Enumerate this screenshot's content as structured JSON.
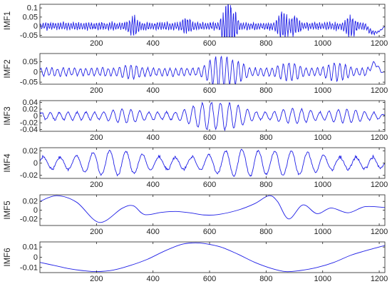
{
  "figure": {
    "line_color": "#1f1fe6",
    "axis_color": "#222222"
  },
  "chart_data": [
    {
      "type": "line",
      "ylabel": "IMF1",
      "xlim": [
        0,
        1220
      ],
      "ylim": [
        -0.06,
        0.12
      ],
      "xticks": [
        200,
        400,
        600,
        800,
        1000,
        1200
      ],
      "xtick_labels": [
        "200",
        "400",
        "600",
        "800",
        "1000",
        "1200"
      ],
      "yticks": [
        -0.05,
        0,
        0.05,
        0.1
      ],
      "ytick_labels": [
        "-0.05",
        "0",
        "0.05",
        "0.1"
      ],
      "signal": {
        "style": "noisy",
        "amplitude": 0.018,
        "period": 9,
        "bursts": [
          {
            "x": 330,
            "amp": 0.05
          },
          {
            "x": 520,
            "amp": 0.04
          },
          {
            "x": 670,
            "amp": 0.12
          },
          {
            "x": 860,
            "amp": 0.07
          },
          {
            "x": 900,
            "amp": 0.05
          },
          {
            "x": 1100,
            "amp": 0.05
          }
        ],
        "tail": {
          "from": 1150,
          "shape": "dip",
          "amp": -0.035
        }
      }
    },
    {
      "type": "line",
      "ylabel": "IMF2",
      "xlim": [
        0,
        1220
      ],
      "ylim": [
        -0.06,
        0.09
      ],
      "xticks": [
        200,
        400,
        600,
        800,
        1000,
        1200
      ],
      "xtick_labels": [
        "200",
        "400",
        "600",
        "800",
        "1000",
        "1200"
      ],
      "yticks": [
        -0.05,
        0,
        0.05
      ],
      "ytick_labels": [
        "-0.05",
        "0",
        "0.05"
      ],
      "signal": {
        "style": "oscillation",
        "amplitude": 0.02,
        "period": 20,
        "bursts": [
          {
            "x": 320,
            "amp": 0.035
          },
          {
            "x": 640,
            "amp": 0.08
          },
          {
            "x": 680,
            "amp": 0.06
          },
          {
            "x": 880,
            "amp": 0.045
          },
          {
            "x": 1050,
            "amp": 0.045
          }
        ],
        "tail": {
          "from": 1160,
          "shape": "hump",
          "amp": 0.04
        }
      }
    },
    {
      "type": "line",
      "ylabel": "IMF3",
      "xlim": [
        0,
        1220
      ],
      "ylim": [
        -0.045,
        0.045
      ],
      "xticks": [
        200,
        400,
        600,
        800,
        1000,
        1200
      ],
      "xtick_labels": [
        "200",
        "400",
        "600",
        "800",
        "1000",
        "1200"
      ],
      "yticks": [
        -0.04,
        -0.02,
        0,
        0.02,
        0.04
      ],
      "ytick_labels": [
        "-0.04",
        "-0.02",
        "0",
        "0.02",
        "0.04"
      ],
      "signal": {
        "style": "oscillation",
        "amplitude": 0.012,
        "period": 32,
        "bursts": [
          {
            "x": 300,
            "amp": 0.02
          },
          {
            "x": 600,
            "amp": 0.04
          },
          {
            "x": 650,
            "amp": 0.04
          },
          {
            "x": 900,
            "amp": 0.022
          },
          {
            "x": 1080,
            "amp": 0.02
          }
        ],
        "tail": {
          "from": 1180,
          "shape": "flat",
          "amp": 0.0
        }
      }
    },
    {
      "type": "line",
      "ylabel": "IMF4",
      "xlim": [
        0,
        1220
      ],
      "ylim": [
        -0.025,
        0.025
      ],
      "xticks": [
        200,
        400,
        600,
        800,
        1000,
        1200
      ],
      "xtick_labels": [
        "200",
        "400",
        "600",
        "800",
        "1000",
        "1200"
      ],
      "yticks": [
        -0.02,
        0,
        0.02
      ],
      "ytick_labels": [
        "-0.02",
        "0",
        "0.02"
      ],
      "signal": {
        "style": "oscillation",
        "amplitude": 0.011,
        "period": 58,
        "bursts": [
          {
            "x": 260,
            "amp": 0.02
          },
          {
            "x": 720,
            "amp": 0.022
          },
          {
            "x": 880,
            "amp": 0.02
          }
        ],
        "tail": {
          "from": 1200,
          "shape": "flat",
          "amp": 0.0
        }
      }
    },
    {
      "type": "line",
      "ylabel": "IMF5",
      "xlim": [
        0,
        1220
      ],
      "ylim": [
        -0.035,
        0.035
      ],
      "xticks": [
        200,
        400,
        600,
        800,
        1000,
        1200
      ],
      "xtick_labels": [
        "200",
        "400",
        "600",
        "800",
        "1000",
        "1200"
      ],
      "yticks": [
        -0.02,
        0,
        0.02
      ],
      "ytick_labels": [
        "-0.02",
        "0",
        "0.02"
      ],
      "x": [
        0,
        60,
        130,
        210,
        290,
        330,
        370,
        430,
        480,
        530,
        580,
        630,
        700,
        760,
        810,
        840,
        880,
        930,
        980,
        1030,
        1090,
        1150,
        1220
      ],
      "y": [
        0.02,
        0.033,
        0.018,
        -0.028,
        0.004,
        0.01,
        -0.01,
        -0.005,
        -0.003,
        -0.006,
        -0.011,
        -0.01,
        0.0,
        0.015,
        0.033,
        0.02,
        -0.02,
        0.012,
        -0.008,
        0.005,
        -0.006,
        0.008,
        0.006
      ]
    },
    {
      "type": "line",
      "ylabel": "IMF6",
      "xlim": [
        0,
        1220
      ],
      "ylim": [
        -0.015,
        0.015
      ],
      "xticks": [
        200,
        400,
        600,
        800,
        1000,
        1200
      ],
      "xtick_labels": [
        "200",
        "400",
        "600",
        "800",
        "1000",
        "1200"
      ],
      "yticks": [
        -0.01,
        0,
        0.01
      ],
      "ytick_labels": [
        "-0.01",
        "0",
        "0.01"
      ],
      "x": [
        0,
        50,
        100,
        150,
        200,
        260,
        320,
        380,
        440,
        500,
        540,
        580,
        640,
        700,
        760,
        820,
        870,
        920,
        980,
        1040,
        1100,
        1160,
        1220
      ],
      "y": [
        -0.005,
        -0.008,
        -0.011,
        -0.013,
        -0.014,
        -0.0125,
        -0.008,
        -0.002,
        0.006,
        0.0125,
        0.014,
        0.0135,
        0.01,
        0.003,
        -0.005,
        -0.011,
        -0.014,
        -0.013,
        -0.01,
        -0.005,
        0.002,
        0.007,
        0.0115
      ]
    }
  ]
}
